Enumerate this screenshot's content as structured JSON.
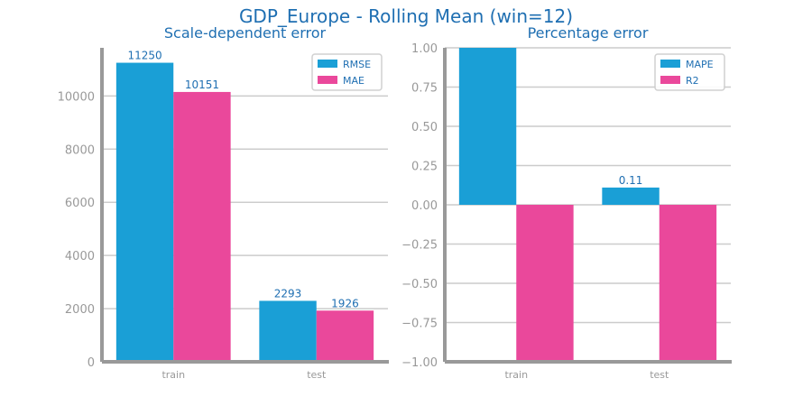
{
  "figure": {
    "suptitle": "GDP_Europe - Rolling Mean (win=12)"
  },
  "colors": {
    "series_1": "#1a9fd6",
    "series_2": "#ea489b",
    "axis": "#999999",
    "grid": "#cccccc",
    "title": "#1f6fb2",
    "value_label": "#1f6fb2",
    "tick_label": "#999999"
  },
  "chart_data": [
    {
      "type": "bar",
      "title": "Scale-dependent error",
      "categories": [
        "train",
        "test"
      ],
      "series": [
        {
          "name": "RMSE",
          "values": [
            11250,
            2293
          ]
        },
        {
          "name": "MAE",
          "values": [
            10151,
            1926
          ]
        }
      ],
      "value_labels": [
        [
          "11250",
          "2293"
        ],
        [
          "10151",
          "1926"
        ]
      ],
      "ylim": [
        0,
        11812
      ],
      "yticks": [
        0,
        2000,
        4000,
        6000,
        8000,
        10000
      ],
      "ytick_labels": [
        "0",
        "2000",
        "4000",
        "6000",
        "8000",
        "10000"
      ],
      "grid": true,
      "legend": "top-right"
    },
    {
      "type": "bar",
      "title": "Percentage error",
      "categories": [
        "train",
        "test"
      ],
      "series": [
        {
          "name": "MAPE",
          "values": [
            1.0,
            0.11
          ]
        },
        {
          "name": "R2",
          "values": [
            -1.0,
            -1.0
          ]
        }
      ],
      "value_labels": [
        [
          "",
          "0.11"
        ],
        [
          "",
          ""
        ]
      ],
      "ylim": [
        -1.0,
        1.0
      ],
      "yticks": [
        -1.0,
        -0.75,
        -0.5,
        -0.25,
        0.0,
        0.25,
        0.5,
        0.75,
        1.0
      ],
      "ytick_labels": [
        "−1.00",
        "−0.75",
        "−0.50",
        "−0.25",
        "0.00",
        "0.25",
        "0.50",
        "0.75",
        "1.00"
      ],
      "grid": true,
      "legend": "top-right"
    }
  ]
}
